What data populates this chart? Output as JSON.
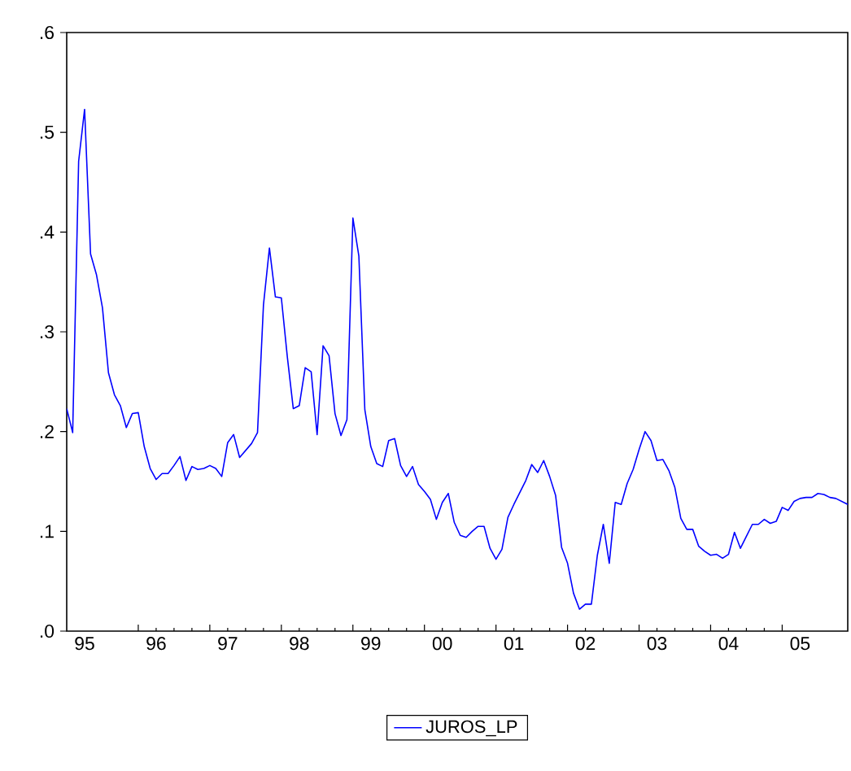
{
  "chart_data": {
    "type": "line",
    "x": [
      "1995-01",
      "1995-02",
      "1995-03",
      "1995-04",
      "1995-05",
      "1995-06",
      "1995-07",
      "1995-08",
      "1995-09",
      "1995-10",
      "1995-11",
      "1995-12",
      "1996-01",
      "1996-02",
      "1996-03",
      "1996-04",
      "1996-05",
      "1996-06",
      "1996-07",
      "1996-08",
      "1996-09",
      "1996-10",
      "1996-11",
      "1996-12",
      "1997-01",
      "1997-02",
      "1997-03",
      "1997-04",
      "1997-05",
      "1997-06",
      "1997-07",
      "1997-08",
      "1997-09",
      "1997-10",
      "1997-11",
      "1997-12",
      "1998-01",
      "1998-02",
      "1998-03",
      "1998-04",
      "1998-05",
      "1998-06",
      "1998-07",
      "1998-08",
      "1998-09",
      "1998-10",
      "1998-11",
      "1998-12",
      "1999-01",
      "1999-02",
      "1999-03",
      "1999-04",
      "1999-05",
      "1999-06",
      "1999-07",
      "1999-08",
      "1999-09",
      "1999-10",
      "1999-11",
      "1999-12",
      "2000-01",
      "2000-02",
      "2000-03",
      "2000-04",
      "2000-05",
      "2000-06",
      "2000-07",
      "2000-08",
      "2000-09",
      "2000-10",
      "2000-11",
      "2000-12",
      "2001-01",
      "2001-02",
      "2001-03",
      "2001-04",
      "2001-05",
      "2001-06",
      "2001-07",
      "2001-08",
      "2001-09",
      "2001-10",
      "2001-11",
      "2001-12",
      "2002-01",
      "2002-02",
      "2002-03",
      "2002-04",
      "2002-05",
      "2002-06",
      "2002-07",
      "2002-08",
      "2002-09",
      "2002-10",
      "2002-11",
      "2002-12",
      "2003-01",
      "2003-02",
      "2003-03",
      "2003-04",
      "2003-05",
      "2003-06",
      "2003-07",
      "2003-08",
      "2003-09",
      "2003-10",
      "2003-11",
      "2003-12",
      "2004-01",
      "2004-02",
      "2004-03",
      "2004-04",
      "2004-05",
      "2004-06",
      "2004-07",
      "2004-08",
      "2004-09",
      "2004-10",
      "2004-11",
      "2004-12",
      "2005-01",
      "2005-02",
      "2005-03",
      "2005-04",
      "2005-05",
      "2005-06",
      "2005-07",
      "2005-08",
      "2005-09",
      "2005-10",
      "2005-11",
      "2005-12"
    ],
    "series": [
      {
        "name": "JUROS_LP",
        "color": "#0000ff",
        "values": [
          0.223,
          0.199,
          0.471,
          0.523,
          0.378,
          0.357,
          0.324,
          0.259,
          0.237,
          0.226,
          0.204,
          0.218,
          0.219,
          0.185,
          0.163,
          0.152,
          0.158,
          0.158,
          0.166,
          0.175,
          0.151,
          0.165,
          0.162,
          0.163,
          0.166,
          0.163,
          0.155,
          0.189,
          0.197,
          0.174,
          0.181,
          0.188,
          0.199,
          0.327,
          0.384,
          0.335,
          0.334,
          0.275,
          0.223,
          0.226,
          0.264,
          0.26,
          0.197,
          0.286,
          0.276,
          0.218,
          0.196,
          0.212,
          0.414,
          0.376,
          0.222,
          0.185,
          0.168,
          0.165,
          0.191,
          0.193,
          0.166,
          0.155,
          0.165,
          0.147,
          0.14,
          0.132,
          0.112,
          0.129,
          0.138,
          0.109,
          0.096,
          0.094,
          0.1,
          0.105,
          0.105,
          0.083,
          0.072,
          0.082,
          0.114,
          0.127,
          0.139,
          0.151,
          0.167,
          0.159,
          0.171,
          0.155,
          0.136,
          0.084,
          0.068,
          0.038,
          0.022,
          0.027,
          0.027,
          0.076,
          0.107,
          0.068,
          0.129,
          0.127,
          0.148,
          0.162,
          0.182,
          0.2,
          0.191,
          0.171,
          0.172,
          0.161,
          0.144,
          0.113,
          0.102,
          0.102,
          0.085,
          0.08,
          0.076,
          0.077,
          0.073,
          0.077,
          0.099,
          0.083,
          0.095,
          0.107,
          0.107,
          0.112,
          0.108,
          0.11,
          0.124,
          0.121,
          0.13,
          0.133,
          0.134,
          0.134,
          0.138,
          0.137,
          0.134,
          0.133,
          0.13,
          0.127
        ]
      }
    ],
    "xlim": [
      "1995-01",
      "2005-12"
    ],
    "xticks": [
      {
        "value": "1996-01",
        "label": null
      },
      {
        "value": "1997-01",
        "label": null
      },
      {
        "value": "1998-01",
        "label": null
      },
      {
        "value": "1999-01",
        "label": null
      },
      {
        "value": "2000-01",
        "label": null
      },
      {
        "value": "2001-01",
        "label": null
      },
      {
        "value": "2002-01",
        "label": null
      },
      {
        "value": "2003-01",
        "label": null
      },
      {
        "value": "2004-01",
        "label": null
      },
      {
        "value": "2005-01",
        "label": null
      },
      {
        "value": "1995-04",
        "label": "95"
      },
      {
        "value": "1996-04",
        "label": "96"
      },
      {
        "value": "1997-04",
        "label": "97"
      },
      {
        "value": "1998-04",
        "label": "98"
      },
      {
        "value": "1999-04",
        "label": "99"
      },
      {
        "value": "2000-04",
        "label": "00"
      },
      {
        "value": "2001-04",
        "label": "01"
      },
      {
        "value": "2002-04",
        "label": "02"
      },
      {
        "value": "2003-04",
        "label": "03"
      },
      {
        "value": "2004-04",
        "label": "04"
      },
      {
        "value": "2005-04",
        "label": "05"
      }
    ],
    "ylim": [
      0,
      0.6
    ],
    "yticks": [
      {
        "value": 0,
        "label": ".0"
      },
      {
        "value": 0.1,
        "label": ".1"
      },
      {
        "value": 0.2,
        "label": ".2"
      },
      {
        "value": 0.3,
        "label": ".3"
      },
      {
        "value": 0.4,
        "label": ".4"
      },
      {
        "value": 0.5,
        "label": ".5"
      },
      {
        "value": 0.6,
        "label": ".6"
      }
    ],
    "legend": "bottom",
    "line_style": "solid",
    "marker": "none"
  }
}
